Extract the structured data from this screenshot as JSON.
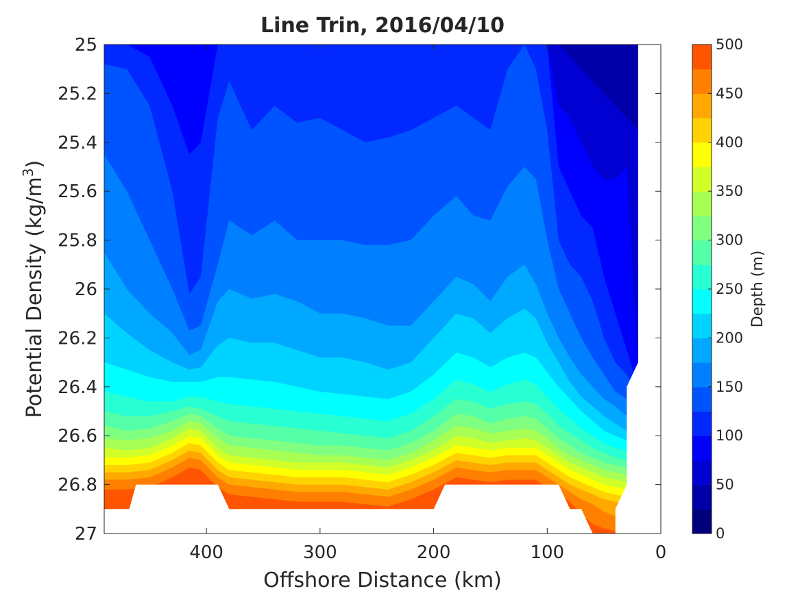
{
  "chart_data": {
    "type": "contour",
    "title": "Line Trin, 2016/04/10",
    "xlabel": "Offshore Distance (km)",
    "ylabel_main": "Potential Density (kg/m",
    "ylabel_sup": "3",
    "ylabel_close": ")",
    "xlim": [
      490,
      0
    ],
    "ylim": [
      27,
      25
    ],
    "x_reversed": true,
    "y_reversed": true,
    "xticks": [
      400,
      300,
      200,
      100,
      0
    ],
    "xtick_labels": [
      "400",
      "300",
      "200",
      "100",
      "0"
    ],
    "yticks": [
      25,
      25.2,
      25.4,
      25.6,
      25.8,
      26,
      26.2,
      26.4,
      26.6,
      26.8,
      27
    ],
    "ytick_labels": [
      "25",
      "25.2",
      "25.4",
      "25.6",
      "25.8",
      "26",
      "26.2",
      "26.4",
      "26.6",
      "26.8",
      "27"
    ],
    "colorbar": {
      "label": "Depth (m)",
      "range": [
        0,
        500
      ],
      "level_step": 25,
      "ticks": [
        0,
        50,
        100,
        150,
        200,
        250,
        300,
        350,
        400,
        450,
        500
      ],
      "tick_labels": [
        "0",
        "50",
        "100",
        "150",
        "200",
        "250",
        "300",
        "350",
        "400",
        "450",
        "500"
      ]
    },
    "contour_levels": [
      25,
      50,
      75,
      100,
      125,
      150,
      175,
      200,
      225,
      250,
      275,
      300,
      325,
      350,
      375,
      400,
      425,
      450,
      475
    ],
    "contour_x": [
      490,
      470,
      450,
      430,
      415,
      405,
      390,
      380,
      360,
      340,
      320,
      300,
      280,
      260,
      240,
      220,
      200,
      180,
      165,
      150,
      135,
      120,
      110,
      100,
      90,
      80,
      70,
      60,
      50,
      40,
      30,
      20
    ],
    "isolines": [
      [
        25.0,
        25.0,
        25.0,
        25.0,
        25.0,
        25.0,
        25.0,
        25.0,
        25.0,
        25.0,
        25.0,
        25.0,
        25.0,
        25.0,
        25.0,
        25.0,
        25.0,
        25.0,
        25.0,
        25.0,
        25.0,
        25.0,
        25.0,
        25.0,
        25.0,
        25.0,
        25.0,
        25.0,
        25.0,
        25.0,
        25.0,
        25.0
      ],
      [
        25.0,
        25.0,
        25.0,
        25.0,
        25.0,
        25.0,
        25.0,
        25.0,
        25.0,
        25.0,
        25.0,
        25.0,
        25.0,
        25.0,
        25.0,
        25.0,
        25.0,
        25.0,
        25.0,
        25.0,
        25.0,
        25.0,
        25.0,
        25.0,
        25.0,
        25.05,
        25.1,
        25.15,
        25.2,
        25.25,
        25.3,
        25.35
      ],
      [
        25.0,
        25.0,
        25.0,
        25.0,
        25.0,
        25.0,
        25.0,
        25.0,
        25.0,
        25.0,
        25.0,
        25.0,
        25.0,
        25.0,
        25.0,
        25.0,
        25.0,
        25.0,
        25.0,
        25.0,
        25.0,
        25.0,
        25.0,
        25.0,
        25.25,
        25.3,
        25.4,
        25.5,
        25.55,
        25.55,
        25.5,
        26.35
      ],
      [
        25.0,
        25.0,
        25.05,
        25.25,
        25.45,
        25.4,
        25.0,
        25.0,
        25.0,
        25.0,
        25.0,
        25.0,
        25.0,
        25.0,
        25.0,
        25.0,
        25.0,
        25.0,
        25.0,
        25.0,
        25.0,
        25.0,
        25.0,
        25.0,
        25.5,
        25.6,
        25.7,
        25.75,
        25.95,
        26.1,
        26.25,
        26.4
      ],
      [
        25.08,
        25.1,
        25.25,
        25.6,
        26.02,
        25.95,
        25.3,
        25.15,
        25.35,
        25.25,
        25.32,
        25.3,
        25.35,
        25.4,
        25.38,
        25.35,
        25.3,
        25.25,
        25.3,
        25.35,
        25.1,
        25.0,
        25.1,
        25.35,
        25.8,
        25.9,
        25.95,
        26.05,
        26.2,
        26.3,
        26.35,
        26.42
      ],
      [
        25.45,
        25.6,
        25.8,
        26.0,
        26.17,
        26.15,
        25.9,
        25.72,
        25.78,
        25.72,
        25.8,
        25.8,
        25.8,
        25.82,
        25.82,
        25.8,
        25.7,
        25.62,
        25.7,
        25.72,
        25.58,
        25.5,
        25.55,
        25.8,
        26.0,
        26.1,
        26.2,
        26.28,
        26.35,
        26.42,
        26.45,
        26.45
      ],
      [
        25.85,
        26.0,
        26.1,
        26.18,
        26.27,
        26.25,
        26.05,
        26.0,
        26.04,
        26.02,
        26.05,
        26.1,
        26.1,
        26.12,
        26.15,
        26.15,
        26.05,
        25.95,
        25.98,
        26.05,
        25.95,
        25.9,
        25.98,
        26.1,
        26.2,
        26.28,
        26.35,
        26.4,
        26.45,
        26.48,
        26.52,
        26.52
      ],
      [
        26.1,
        26.18,
        26.25,
        26.3,
        26.33,
        26.32,
        26.23,
        26.2,
        26.22,
        26.22,
        26.25,
        26.28,
        26.28,
        26.3,
        26.33,
        26.3,
        26.2,
        26.1,
        26.12,
        26.18,
        26.12,
        26.08,
        26.12,
        26.22,
        26.3,
        26.38,
        26.44,
        26.48,
        26.52,
        26.55,
        26.58,
        26.58
      ],
      [
        26.3,
        26.33,
        26.36,
        26.38,
        26.38,
        26.38,
        26.36,
        26.36,
        26.37,
        26.38,
        26.4,
        26.42,
        26.43,
        26.44,
        26.45,
        26.42,
        26.35,
        26.26,
        26.28,
        26.32,
        26.28,
        26.26,
        26.28,
        26.34,
        26.4,
        26.45,
        26.5,
        26.54,
        26.58,
        26.6,
        26.62,
        26.62
      ],
      [
        26.42,
        26.44,
        26.46,
        26.46,
        26.44,
        26.44,
        26.46,
        26.47,
        26.48,
        26.49,
        26.5,
        26.51,
        26.52,
        26.53,
        26.54,
        26.51,
        26.45,
        26.37,
        26.39,
        26.42,
        26.39,
        26.37,
        26.39,
        26.44,
        26.49,
        26.53,
        26.57,
        26.6,
        26.63,
        26.65,
        26.66,
        26.66
      ],
      [
        26.5,
        26.52,
        26.52,
        26.5,
        26.48,
        26.49,
        26.52,
        26.54,
        26.55,
        26.56,
        26.57,
        26.58,
        26.59,
        26.6,
        26.61,
        26.58,
        26.52,
        26.45,
        26.46,
        26.49,
        26.47,
        26.46,
        26.47,
        26.51,
        26.56,
        26.59,
        26.62,
        26.65,
        26.67,
        26.69,
        26.7,
        26.7
      ],
      [
        26.56,
        26.58,
        26.57,
        26.54,
        26.51,
        26.52,
        26.57,
        26.6,
        26.61,
        26.62,
        26.63,
        26.64,
        26.64,
        26.65,
        26.66,
        26.63,
        26.58,
        26.51,
        26.52,
        26.55,
        26.53,
        26.52,
        26.53,
        26.57,
        26.61,
        26.64,
        26.67,
        26.69,
        26.71,
        26.72,
        26.73,
        26.73
      ],
      [
        26.61,
        26.62,
        26.61,
        26.58,
        26.54,
        26.55,
        26.61,
        26.64,
        26.65,
        26.66,
        26.67,
        26.68,
        26.68,
        26.69,
        26.7,
        26.67,
        26.62,
        26.56,
        26.57,
        26.59,
        26.58,
        26.57,
        26.58,
        26.61,
        26.65,
        26.68,
        26.7,
        26.72,
        26.74,
        26.75,
        26.76,
        26.76
      ],
      [
        26.65,
        26.66,
        26.65,
        26.61,
        26.57,
        26.58,
        26.65,
        26.68,
        26.69,
        26.7,
        26.71,
        26.71,
        26.71,
        26.72,
        26.73,
        26.7,
        26.66,
        26.6,
        26.61,
        26.63,
        26.62,
        26.61,
        26.62,
        26.65,
        26.68,
        26.71,
        26.73,
        26.75,
        26.77,
        26.78,
        26.79,
        26.79
      ],
      [
        26.69,
        26.69,
        26.68,
        26.64,
        26.6,
        26.61,
        26.68,
        26.71,
        26.72,
        26.73,
        26.74,
        26.74,
        26.74,
        26.75,
        26.76,
        26.73,
        26.69,
        26.64,
        26.65,
        26.66,
        26.65,
        26.65,
        26.65,
        26.68,
        26.71,
        26.74,
        26.76,
        26.78,
        26.8,
        26.81,
        26.82,
        26.82
      ],
      [
        26.72,
        26.72,
        26.71,
        26.67,
        26.63,
        26.64,
        26.71,
        26.74,
        26.75,
        26.76,
        26.77,
        26.77,
        26.77,
        26.78,
        26.79,
        26.76,
        26.72,
        26.67,
        26.68,
        26.69,
        26.68,
        26.68,
        26.68,
        26.71,
        26.74,
        26.77,
        26.79,
        26.81,
        26.83,
        26.84,
        26.85,
        26.85
      ],
      [
        26.75,
        26.75,
        26.74,
        26.7,
        26.66,
        26.67,
        26.74,
        26.77,
        26.78,
        26.79,
        26.8,
        26.8,
        26.8,
        26.81,
        26.82,
        26.79,
        26.75,
        26.7,
        26.71,
        26.72,
        26.71,
        26.71,
        26.71,
        26.74,
        26.77,
        26.8,
        26.82,
        26.84,
        26.86,
        26.87,
        26.88,
        26.88
      ],
      [
        26.78,
        26.78,
        26.77,
        26.73,
        26.69,
        26.7,
        26.77,
        26.8,
        26.81,
        26.82,
        26.83,
        26.83,
        26.83,
        26.84,
        26.85,
        26.82,
        26.78,
        26.73,
        26.74,
        26.75,
        26.74,
        26.74,
        26.74,
        26.77,
        26.8,
        26.83,
        26.86,
        26.88,
        26.91,
        26.93,
        26.94,
        26.94
      ],
      [
        26.82,
        26.82,
        26.81,
        26.77,
        26.73,
        26.74,
        26.81,
        26.84,
        26.85,
        26.86,
        26.87,
        26.87,
        26.87,
        26.88,
        26.89,
        26.86,
        26.82,
        26.77,
        26.78,
        26.79,
        26.78,
        26.78,
        26.78,
        26.81,
        26.84,
        26.87,
        26.92,
        26.96,
        26.98,
        26.99,
        27.0,
        27.0
      ]
    ],
    "colormap": [
      "#00007f",
      "#0000a8",
      "#0000d3",
      "#0000ff",
      "#0028ff",
      "#0054ff",
      "#0080ff",
      "#00a8ff",
      "#00d3ff",
      "#00ffff",
      "#28ffd3",
      "#54ffa8",
      "#80ff80",
      "#a8ff54",
      "#d3ff28",
      "#ffff00",
      "#ffd300",
      "#ffa800",
      "#ff8000",
      "#ff5400",
      "#ff2800",
      "#ff0000",
      "#d30000",
      "#a80000"
    ],
    "nodata_polygons": [
      [
        [
          490,
          26.9
        ],
        [
          468,
          26.9
        ],
        [
          462,
          26.8
        ],
        [
          390,
          26.8
        ],
        [
          380,
          26.9
        ],
        [
          200,
          26.9
        ],
        [
          190,
          26.8
        ],
        [
          90,
          26.8
        ],
        [
          80,
          26.9
        ],
        [
          70,
          26.9
        ],
        [
          60,
          27.0
        ],
        [
          490,
          27.0
        ]
      ],
      [
        [
          40,
          27.0
        ],
        [
          40,
          26.9
        ],
        [
          30,
          26.8
        ],
        [
          30,
          26.4
        ],
        [
          20,
          26.3
        ],
        [
          20,
          25.0
        ],
        [
          0,
          25.0
        ],
        [
          0,
          27.0
        ]
      ]
    ],
    "colors": {
      "axis": "#262626",
      "nodata": "#ffffff",
      "background": "#ffffff"
    }
  }
}
